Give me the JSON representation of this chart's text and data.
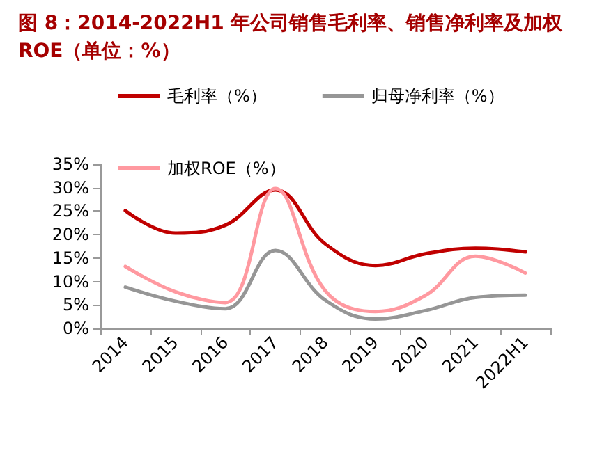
{
  "chart_data": {
    "type": "line",
    "title": "图 8：2014-2022H1 年公司销售毛利率、销售净利率及加权ROE（单位：%）",
    "categories": [
      "2014",
      "2015",
      "2016",
      "2017",
      "2018",
      "2019",
      "2020",
      "2021",
      "2022H1"
    ],
    "series": [
      {
        "name": "毛利率（%）",
        "color": "#c00000",
        "values": [
          25.1,
          20.3,
          22.0,
          29.5,
          18.0,
          13.4,
          15.9,
          17.1,
          16.3
        ]
      },
      {
        "name": "归母净利率（%）",
        "color": "#969696",
        "values": [
          8.8,
          5.8,
          4.2,
          16.6,
          6.0,
          2.0,
          3.8,
          6.6,
          7.1
        ]
      },
      {
        "name": "加权ROE（%）",
        "color": "#ff99a0",
        "values": [
          13.2,
          7.8,
          5.5,
          29.8,
          8.0,
          3.6,
          7.0,
          15.4,
          11.8
        ]
      }
    ],
    "ylim": [
      0,
      35
    ],
    "yticks": [
      {
        "value": 0,
        "label": "0%"
      },
      {
        "value": 5,
        "label": "5%"
      },
      {
        "value": 10,
        "label": "10%"
      },
      {
        "value": 15,
        "label": "15%"
      },
      {
        "value": 20,
        "label": "20%"
      },
      {
        "value": 25,
        "label": "25%"
      },
      {
        "value": 30,
        "label": "30%"
      },
      {
        "value": 35,
        "label": "35%"
      }
    ],
    "grid": false,
    "legend": "top left",
    "marker": "none",
    "line_style": "solid"
  }
}
